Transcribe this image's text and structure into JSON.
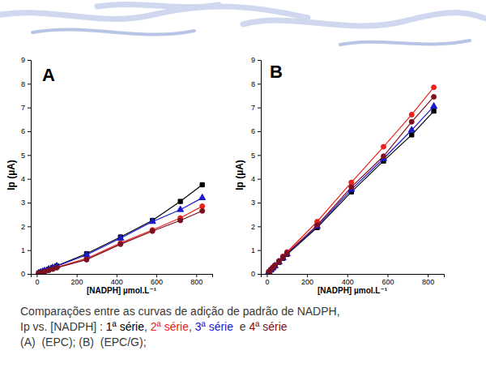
{
  "chart_data": [
    {
      "type": "line",
      "title": "A",
      "x_label": "[NADPH] µmol.L⁻¹",
      "y_label": "Ip (µA)",
      "x": [
        10,
        20,
        30,
        40,
        60,
        80,
        100,
        250,
        420,
        580,
        720,
        830
      ],
      "xlim": [
        -30,
        880
      ],
      "xticks": [
        0,
        200,
        400,
        600,
        800
      ],
      "ylim": [
        0,
        9
      ],
      "yticks": [
        0,
        1,
        2,
        3,
        4,
        5,
        6,
        7,
        8,
        9
      ],
      "series": [
        {
          "color": "#000000",
          "marker": "square",
          "values": [
            0.04,
            0.07,
            0.1,
            0.14,
            0.2,
            0.27,
            0.34,
            0.85,
            1.55,
            2.25,
            3.05,
            3.75
          ]
        },
        {
          "color": "#e8221c",
          "marker": "circle",
          "values": [
            0.03,
            0.06,
            0.08,
            0.11,
            0.16,
            0.22,
            0.28,
            0.65,
            1.3,
            1.85,
            2.35,
            2.85
          ]
        },
        {
          "color": "#1a1acc",
          "marker": "triangle",
          "values": [
            0.04,
            0.07,
            0.1,
            0.13,
            0.2,
            0.26,
            0.33,
            0.8,
            1.5,
            2.2,
            2.7,
            3.2
          ]
        },
        {
          "color": "#7a1020",
          "marker": "circle",
          "values": [
            0.03,
            0.05,
            0.08,
            0.1,
            0.15,
            0.2,
            0.26,
            0.6,
            1.25,
            1.8,
            2.25,
            2.65
          ]
        }
      ]
    },
    {
      "type": "line",
      "title": "B",
      "x_label": "[NADPH] µmol.L⁻¹",
      "y_label": "Ip (µA)",
      "x": [
        10,
        20,
        30,
        40,
        60,
        80,
        100,
        250,
        420,
        580,
        720,
        830
      ],
      "xlim": [
        -30,
        880
      ],
      "xticks": [
        0,
        200,
        400,
        600,
        800
      ],
      "ylim": [
        0,
        9
      ],
      "yticks": [
        0,
        1,
        2,
        3,
        4,
        5,
        6,
        7,
        8,
        9
      ],
      "series": [
        {
          "color": "#000000",
          "marker": "square",
          "values": [
            0.08,
            0.16,
            0.25,
            0.33,
            0.49,
            0.66,
            0.82,
            1.95,
            3.45,
            4.75,
            5.85,
            6.85
          ]
        },
        {
          "color": "#e8221c",
          "marker": "circle",
          "values": [
            0.09,
            0.19,
            0.28,
            0.37,
            0.55,
            0.74,
            0.92,
            2.2,
            3.85,
            5.35,
            6.7,
            7.85
          ]
        },
        {
          "color": "#1a1acc",
          "marker": "triangle",
          "values": [
            0.08,
            0.17,
            0.25,
            0.34,
            0.5,
            0.67,
            0.84,
            2.0,
            3.55,
            4.85,
            6.05,
            7.05
          ]
        },
        {
          "color": "#7a1020",
          "marker": "circle",
          "values": [
            0.09,
            0.18,
            0.26,
            0.35,
            0.52,
            0.7,
            0.87,
            2.05,
            3.65,
            4.95,
            6.4,
            7.45
          ]
        }
      ]
    }
  ],
  "caption": {
    "lines": [
      [
        {
          "text": "Comparações entre as curvas de adição de padrão de NADPH,",
          "color": "#3a3a3a"
        }
      ],
      [
        {
          "text": "Ip vs. [NADPH] : ",
          "color": "#3a3a3a"
        },
        {
          "text": "1ª série",
          "color": "#000000"
        },
        {
          "text": ", ",
          "color": "#3a3a3a"
        },
        {
          "text": "2ª série",
          "color": "#e8221c"
        },
        {
          "text": ", ",
          "color": "#3a3a3a"
        },
        {
          "text": "3ª série",
          "color": "#1a1acc"
        },
        {
          "text": "  e ",
          "color": "#3a3a3a"
        },
        {
          "text": "4ª série",
          "color": "#7a1020"
        }
      ],
      [
        {
          "text": "(A)  (EPC); (B)  (EPC/G);",
          "color": "#3a3a3a"
        }
      ]
    ]
  }
}
